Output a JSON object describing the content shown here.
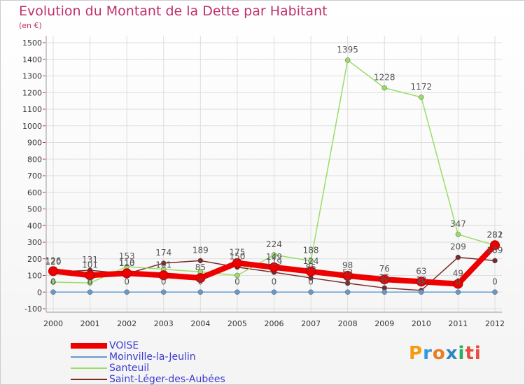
{
  "chart_data": {
    "type": "line",
    "title": "Evolution du Montant de la Dette par Habitant",
    "subtitle": "(en €)",
    "categories": [
      "2000",
      "2001",
      "2002",
      "2003",
      "2004",
      "2005",
      "2006",
      "2007",
      "2008",
      "2009",
      "2010",
      "2011",
      "2012"
    ],
    "ylim": [
      -100,
      1500
    ],
    "yticks": [
      -100,
      0,
      100,
      200,
      300,
      400,
      500,
      600,
      700,
      800,
      900,
      1000,
      1100,
      1200,
      1300,
      1400,
      1500
    ],
    "grid": true,
    "legend_position": "bottom-left",
    "series": [
      {
        "name": "Saint-Léger-des-Aubées",
        "color": "#7a2a2a",
        "values": [
          120,
          131,
          110,
          174,
          189,
          150,
          119,
          85,
          53,
          25,
          10,
          209,
          189
        ]
      },
      {
        "name": "Santeuil",
        "color": "#99dd66",
        "values": [
          60,
          55,
          153,
          137,
          122,
          100,
          224,
          188,
          1395,
          1228,
          1172,
          347,
          281
        ]
      },
      {
        "name": "Moinville-la-Jeulin",
        "color": "#6699cc",
        "values": [
          0,
          0,
          0,
          0,
          0,
          0,
          0,
          0,
          0,
          0,
          0,
          0,
          0
        ]
      },
      {
        "name": "VOISE",
        "color": "#ee0000",
        "values": [
          126,
          101,
          113,
          101,
          85,
          175,
          149,
          124,
          98,
          76,
          63,
          49,
          282
        ]
      }
    ],
    "data_labels": [
      {
        "series": 0,
        "values": [
          120,
          131,
          110,
          174,
          189,
          150,
          119,
          85,
          53,
          25,
          10,
          209,
          189
        ]
      },
      {
        "series": 1,
        "values": [
          null,
          null,
          153,
          null,
          null,
          null,
          224,
          188,
          1395,
          1228,
          1172,
          347,
          281
        ]
      },
      {
        "series": 2,
        "values": [
          0,
          0,
          0,
          0,
          0,
          0,
          0,
          0,
          0,
          0,
          0,
          0,
          0
        ]
      },
      {
        "series": 3,
        "values": [
          126,
          101,
          113,
          101,
          85,
          175,
          149,
          124,
          98,
          76,
          63,
          49,
          282
        ]
      }
    ]
  },
  "legend": [
    {
      "label": "VOISE",
      "color": "#ee0000"
    },
    {
      "label": "Moinville-la-Jeulin",
      "color": "#6699cc"
    },
    {
      "label": "Santeuil",
      "color": "#99dd66"
    },
    {
      "label": "Saint-Léger-des-Aubées",
      "color": "#7a2a2a"
    }
  ],
  "logo": {
    "l1": "P",
    "l2": "r",
    "l3": "o",
    "l4": "x",
    "l5": "i",
    "l6": "ti"
  }
}
